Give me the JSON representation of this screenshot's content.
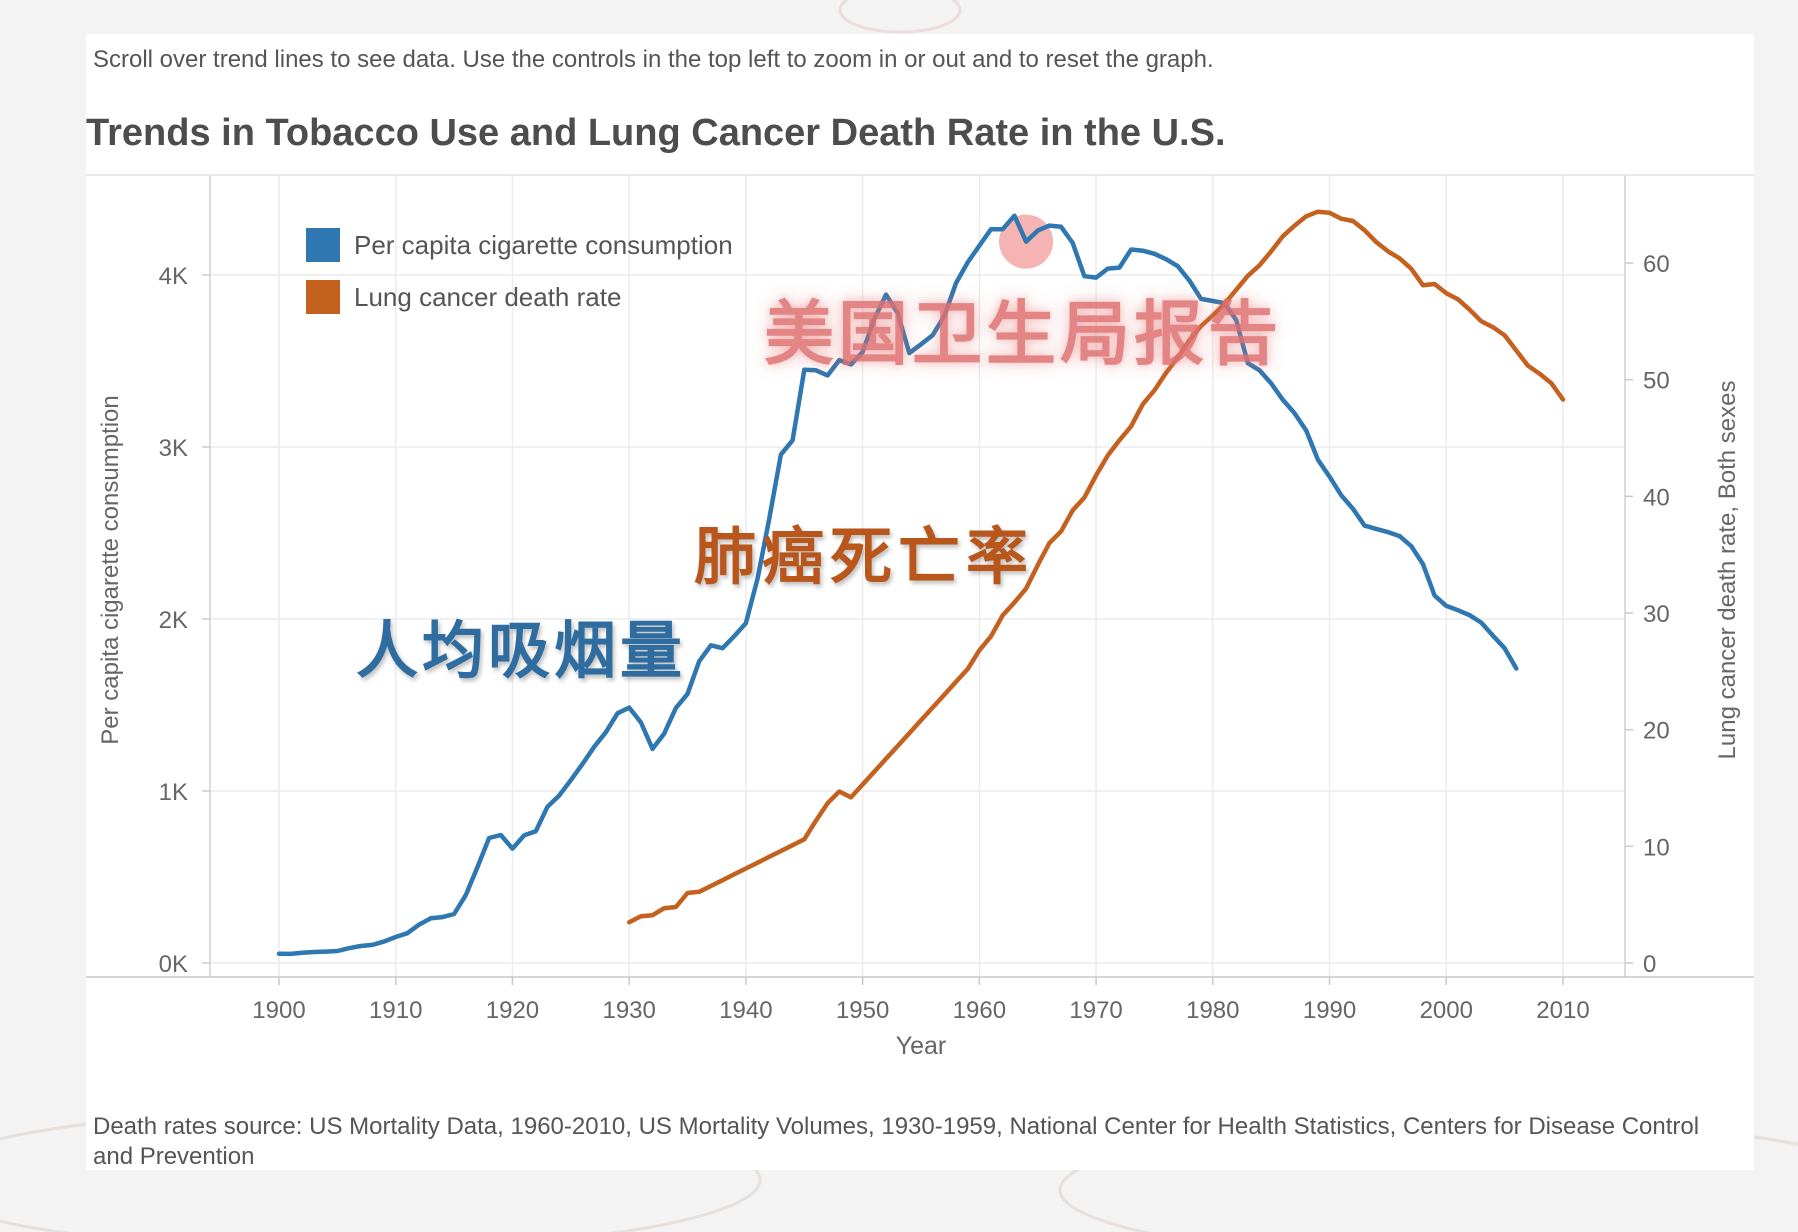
{
  "header": {
    "instructions": "Scroll over trend lines to see data. Use the controls in the top left to zoom in or out and to reset the graph."
  },
  "footer": {
    "source": "Death rates source: US Mortality Data, 1960-2010, US Mortality Volumes, 1930-1959, National Center for Health Statistics, Centers for Disease Control and Prevention"
  },
  "overlays": {
    "report_label": "美国卫生局报告",
    "death_rate_label": "肺癌死亡率",
    "consumption_label": "人均吸烟量"
  },
  "colors": {
    "consumption": "#2e77b0",
    "death_rate": "#c5611f",
    "highlight": "#f2a0a0"
  },
  "chart_data": {
    "type": "line",
    "title": "Trends in Tobacco Use and Lung Cancer Death Rate in the U.S.",
    "xlabel": "Year",
    "ylabel_left": "Per capita cigarette consumption",
    "ylabel_right": "Lung cancer death rate, Both sexes",
    "xlim": [
      1894,
      2015
    ],
    "ylim_left": [
      0,
      4500
    ],
    "ylim_right": [
      0,
      65
    ],
    "x_ticks": [
      1900,
      1910,
      1920,
      1930,
      1940,
      1950,
      1960,
      1970,
      1980,
      1990,
      2000,
      2010
    ],
    "y_left_ticks": [
      0,
      1000,
      2000,
      3000,
      4000
    ],
    "y_left_tick_labels": [
      "0K",
      "1K",
      "2K",
      "3K",
      "4K"
    ],
    "y_right_ticks": [
      0,
      10,
      20,
      30,
      40,
      50,
      60
    ],
    "y_right_tick_labels": [
      "0",
      "10",
      "20",
      "30",
      "40",
      "50",
      "60"
    ],
    "legend_position": "top-left",
    "grid": true,
    "highlight_year": 1964,
    "series": [
      {
        "name": "Per capita cigarette consumption",
        "axis": "left",
        "x": [
          1900,
          1901,
          1902,
          1903,
          1904,
          1905,
          1906,
          1907,
          1908,
          1909,
          1910,
          1911,
          1912,
          1913,
          1914,
          1915,
          1916,
          1917,
          1918,
          1919,
          1920,
          1921,
          1922,
          1923,
          1924,
          1925,
          1926,
          1927,
          1928,
          1929,
          1930,
          1931,
          1932,
          1933,
          1934,
          1935,
          1936,
          1937,
          1938,
          1939,
          1940,
          1941,
          1942,
          1943,
          1944,
          1945,
          1946,
          1947,
          1948,
          1949,
          1950,
          1951,
          1952,
          1953,
          1954,
          1955,
          1956,
          1957,
          1958,
          1959,
          1960,
          1961,
          1962,
          1963,
          1964,
          1965,
          1966,
          1967,
          1968,
          1969,
          1970,
          1971,
          1972,
          1973,
          1974,
          1975,
          1976,
          1977,
          1978,
          1979,
          1980,
          1981,
          1982,
          1983,
          1984,
          1985,
          1986,
          1987,
          1988,
          1989,
          1990,
          1991,
          1992,
          1993,
          1994,
          1995,
          1996,
          1997,
          1998,
          1999,
          2000,
          2001,
          2002,
          2003,
          2004,
          2005,
          2006
        ],
        "values": [
          54,
          53,
          60,
          64,
          66,
          70,
          86,
          99,
          105,
          125,
          151,
          173,
          223,
          260,
          267,
          285,
          395,
          557,
          727,
          744,
          665,
          742,
          766,
          909,
          973,
          1063,
          1157,
          1257,
          1341,
          1452,
          1485,
          1399,
          1245,
          1334,
          1483,
          1564,
          1754,
          1847,
          1830,
          1900,
          1976,
          2236,
          2585,
          2956,
          3039,
          3449,
          3446,
          3416,
          3505,
          3480,
          3552,
          3744,
          3886,
          3778,
          3546,
          3597,
          3650,
          3761,
          3953,
          4073,
          4171,
          4266,
          4266,
          4345,
          4194,
          4258,
          4287,
          4280,
          4186,
          3993,
          3985,
          4037,
          4043,
          4148,
          4141,
          4123,
          4092,
          4051,
          3967,
          3861,
          3849,
          3836,
          3739,
          3488,
          3446,
          3370,
          3274,
          3197,
          3096,
          2926,
          2828,
          2720,
          2641,
          2543,
          2524,
          2505,
          2482,
          2423,
          2320,
          2136,
          2076,
          2051,
          2022,
          1979,
          1903,
          1830,
          1712
        ]
      },
      {
        "name": "Lung cancer death rate",
        "axis": "right",
        "x": [
          1930,
          1931,
          1932,
          1933,
          1934,
          1935,
          1936,
          1937,
          1938,
          1939,
          1940,
          1941,
          1942,
          1943,
          1944,
          1945,
          1946,
          1947,
          1948,
          1949,
          1950,
          1951,
          1952,
          1953,
          1954,
          1955,
          1956,
          1957,
          1958,
          1959,
          1960,
          1961,
          1962,
          1963,
          1964,
          1965,
          1966,
          1967,
          1968,
          1969,
          1970,
          1971,
          1972,
          1973,
          1974,
          1975,
          1976,
          1977,
          1978,
          1979,
          1980,
          1981,
          1982,
          1983,
          1984,
          1985,
          1986,
          1987,
          1988,
          1989,
          1990,
          1991,
          1992,
          1993,
          1994,
          1995,
          1996,
          1997,
          1998,
          1999,
          2000,
          2001,
          2002,
          2003,
          2004,
          2005,
          2006,
          2007,
          2008,
          2009,
          2010
        ],
        "values": [
          3.5,
          4,
          4.1,
          4.7,
          4.8,
          6,
          6.1,
          6.6,
          7.1,
          7.6,
          8.1,
          8.6,
          9.1,
          9.6,
          10.1,
          10.6,
          12.2,
          13.7,
          14.7,
          14.2,
          15.3,
          16.4,
          17.5,
          18.6,
          19.7,
          20.8,
          21.9,
          23,
          24.1,
          25.2,
          26.8,
          28,
          29.8,
          30.9,
          32.1,
          34.1,
          36,
          37,
          38.8,
          39.9,
          41.8,
          43.5,
          44.8,
          46,
          47.9,
          49.1,
          50.6,
          51.9,
          53.4,
          54.6,
          55.5,
          56.5,
          57.7,
          58.9,
          59.8,
          61,
          62.3,
          63.2,
          64,
          64.4,
          64.3,
          63.8,
          63.6,
          62.8,
          61.8,
          61,
          60.4,
          59.5,
          58.1,
          58.2,
          57.4,
          56.9,
          56,
          55,
          54.5,
          53.8,
          52.5,
          51.2,
          50.5,
          49.7,
          48.3
        ]
      }
    ]
  }
}
